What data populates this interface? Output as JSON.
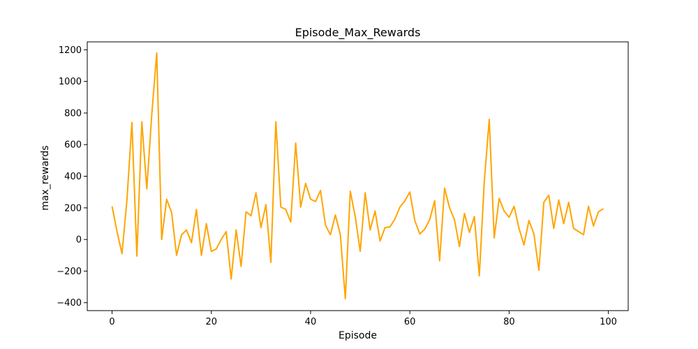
{
  "chart_data": {
    "type": "line",
    "title": "Episode_Max_Rewards",
    "xlabel": "Episode",
    "ylabel": "max_rewards",
    "xlim": [
      -5,
      104
    ],
    "ylim": [
      -450,
      1250
    ],
    "xticks": [
      0,
      20,
      40,
      60,
      80,
      100
    ],
    "yticks": [
      -400,
      -200,
      0,
      200,
      400,
      600,
      800,
      1000,
      1200
    ],
    "grid": false,
    "legend": "none",
    "series": [
      {
        "color": "#ffa500",
        "x": [
          0,
          1,
          2,
          3,
          4,
          5,
          6,
          7,
          8,
          9,
          10,
          11,
          12,
          13,
          14,
          15,
          16,
          17,
          18,
          19,
          20,
          21,
          22,
          23,
          24,
          25,
          26,
          27,
          28,
          29,
          30,
          31,
          32,
          33,
          34,
          35,
          36,
          37,
          38,
          39,
          40,
          41,
          42,
          43,
          44,
          45,
          46,
          47,
          48,
          49,
          50,
          51,
          52,
          53,
          54,
          55,
          56,
          57,
          58,
          59,
          60,
          61,
          62,
          63,
          64,
          65,
          66,
          67,
          68,
          69,
          70,
          71,
          72,
          73,
          74,
          75,
          76,
          77,
          78,
          79,
          80,
          81,
          82,
          83,
          84,
          85,
          86,
          87,
          88,
          89,
          90,
          91,
          92,
          93,
          94,
          95,
          96,
          97,
          98,
          99
        ],
        "y": [
          210,
          50,
          -90,
          250,
          740,
          -105,
          745,
          320,
          790,
          1180,
          0,
          255,
          170,
          -100,
          30,
          60,
          -20,
          190,
          -100,
          100,
          -75,
          -60,
          0,
          50,
          -250,
          60,
          -170,
          175,
          150,
          295,
          75,
          220,
          -145,
          745,
          205,
          190,
          110,
          610,
          205,
          355,
          255,
          240,
          310,
          90,
          30,
          155,
          30,
          -375,
          305,
          145,
          -75,
          295,
          60,
          180,
          -10,
          75,
          80,
          130,
          205,
          245,
          300,
          120,
          35,
          65,
          125,
          245,
          -135,
          325,
          200,
          125,
          -45,
          165,
          45,
          145,
          -230,
          365,
          760,
          10,
          260,
          180,
          140,
          210,
          70,
          -35,
          120,
          35,
          -195,
          235,
          280,
          70,
          250,
          100,
          235,
          70,
          50,
          30,
          210,
          85,
          175,
          195
        ]
      }
    ]
  }
}
